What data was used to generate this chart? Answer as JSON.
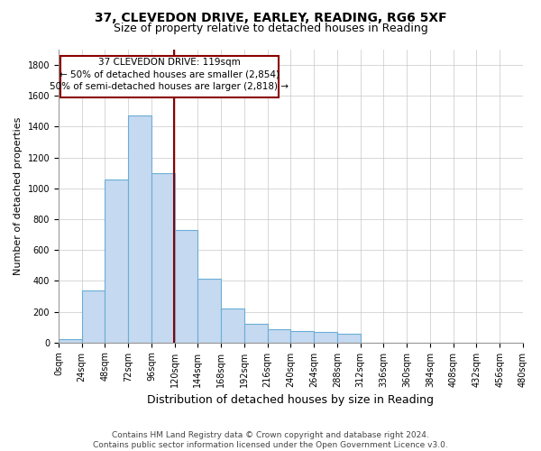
{
  "title_line1": "37, CLEVEDON DRIVE, EARLEY, READING, RG6 5XF",
  "title_line2": "Size of property relative to detached houses in Reading",
  "xlabel": "Distribution of detached houses by size in Reading",
  "ylabel": "Number of detached properties",
  "footer_line1": "Contains HM Land Registry data © Crown copyright and database right 2024.",
  "footer_line2": "Contains public sector information licensed under the Open Government Licence v3.0.",
  "annotation_line1": "37 CLEVEDON DRIVE: 119sqm",
  "annotation_line2": "← 50% of detached houses are smaller (2,854)",
  "annotation_line3": "50% of semi-detached houses are larger (2,818) →",
  "property_size": 119,
  "bar_edges": [
    0,
    24,
    48,
    72,
    96,
    120,
    144,
    168,
    192,
    216,
    240,
    264,
    288,
    312,
    336,
    360,
    384,
    408,
    432,
    456,
    480
  ],
  "bar_heights": [
    20,
    340,
    1060,
    1470,
    1100,
    730,
    415,
    220,
    120,
    85,
    75,
    70,
    55,
    0,
    0,
    0,
    0,
    0,
    0,
    0
  ],
  "bar_color": "#c5d9f0",
  "bar_edge_color": "#6aaed6",
  "marker_line_color": "#8b0000",
  "annotation_box_color": "#8b0000",
  "background_color": "#ffffff",
  "grid_color": "#c8c8c8",
  "ylim": [
    0,
    1900
  ],
  "yticks": [
    0,
    200,
    400,
    600,
    800,
    1000,
    1200,
    1400,
    1600,
    1800
  ],
  "title_fontsize": 10,
  "subtitle_fontsize": 9,
  "ylabel_fontsize": 8,
  "xlabel_fontsize": 9,
  "tick_fontsize": 7,
  "footer_fontsize": 6.5,
  "annotation_fontsize": 7.5
}
